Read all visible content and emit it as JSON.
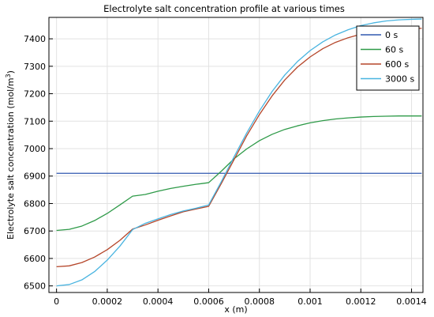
{
  "chart_data": {
    "type": "line",
    "title": "Electrolyte salt concentration profile at various times",
    "xlabel": "x (m)",
    "ylabel": "Electrolyte salt concentration (mol/m",
    "ylabel_sup": "3",
    "ylabel_end": ")",
    "xlim": [
      -3e-05,
      0.000145
    ],
    "ylim": [
      6475,
      7480
    ],
    "x_ticks": [
      0,
      0.0002,
      0.0004,
      0.0006,
      0.0008,
      0.001,
      0.0012,
      0.0014
    ],
    "x_tick_labels": [
      "0",
      "0.0002",
      "0.0004",
      "0.0006",
      "0.0008",
      "0.001",
      "0.0012",
      "0.0014"
    ],
    "y_ticks": [
      6500,
      6600,
      6700,
      6800,
      6900,
      7000,
      7100,
      7200,
      7300,
      7400
    ],
    "y_tick_labels": [
      "6500",
      "6600",
      "6700",
      "6800",
      "6900",
      "7000",
      "7100",
      "7200",
      "7300",
      "7400"
    ],
    "grid": true,
    "legend_position": "top-right",
    "x": [
      0,
      5e-05,
      0.0001,
      0.00015,
      0.0002,
      0.00025,
      0.0003,
      0.00035,
      0.0004,
      0.00045,
      0.0005,
      0.00055,
      0.0006,
      0.00065,
      0.0007,
      0.00075,
      0.0008,
      0.00085,
      0.0009,
      0.00095,
      0.001,
      0.00105,
      0.0011,
      0.00115,
      0.0012,
      0.00125,
      0.0013,
      0.00135,
      0.0014,
      0.00144
    ],
    "series": [
      {
        "name": "0 s",
        "color": "#3058b0",
        "values": [
          6910,
          6910,
          6910,
          6910,
          6910,
          6910,
          6910,
          6910,
          6910,
          6910,
          6910,
          6910,
          6910,
          6910,
          6910,
          6910,
          6910,
          6910,
          6910,
          6910,
          6910,
          6910,
          6910,
          6910,
          6910,
          6910,
          6910,
          6910,
          6910,
          6910
        ]
      },
      {
        "name": "60 s",
        "color": "#2e9a48",
        "values": [
          6702,
          6706,
          6718,
          6738,
          6764,
          6795,
          6827,
          6833,
          6845,
          6855,
          6863,
          6870,
          6876,
          6918,
          6963,
          6999,
          7029,
          7052,
          7070,
          7083,
          7094,
          7102,
          7108,
          7112,
          7115,
          7117,
          7118,
          7119,
          7119,
          7119
        ]
      },
      {
        "name": "600 s",
        "color": "#b5462a",
        "values": [
          6570,
          6573,
          6585,
          6605,
          6632,
          6666,
          6707,
          6722,
          6739,
          6755,
          6770,
          6780,
          6790,
          6873,
          6960,
          7047,
          7124,
          7192,
          7250,
          7297,
          7334,
          7364,
          7387,
          7404,
          7417,
          7426,
          7432,
          7436,
          7438,
          7438
        ]
      },
      {
        "name": "3000 s",
        "color": "#49b4e0",
        "values": [
          6500,
          6505,
          6522,
          6552,
          6594,
          6645,
          6705,
          6728,
          6744,
          6760,
          6773,
          6783,
          6795,
          6880,
          6970,
          7057,
          7137,
          7208,
          7268,
          7317,
          7357,
          7389,
          7414,
          7433,
          7448,
          7458,
          7465,
          7469,
          7471,
          7472
        ]
      }
    ]
  }
}
